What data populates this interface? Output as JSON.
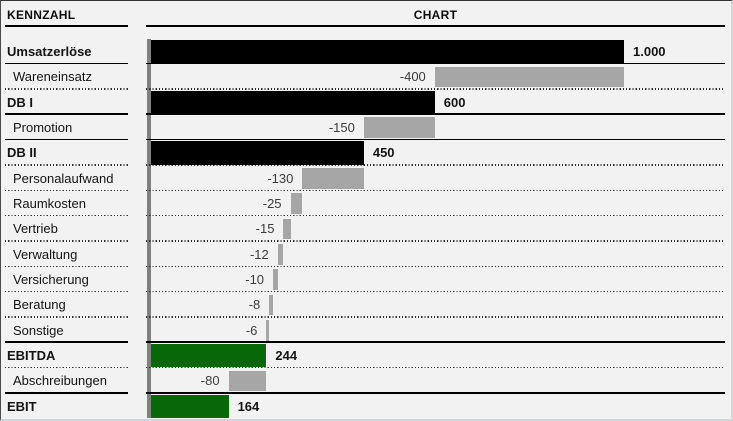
{
  "header": {
    "left_title": "KENNZAHL",
    "right_title": "CHART"
  },
  "colors": {
    "background": "#f2f2f2",
    "total_bar": "#000000",
    "delta_bar": "#a6a6a6",
    "result_bar": "#066806",
    "axis_line": "#808080",
    "separator": "#000000",
    "label_text": "#141414",
    "delta_value_text": "#3c3c3c"
  },
  "chart_data": {
    "type": "bar",
    "subtype": "horizontal-waterfall",
    "title": "CHART",
    "category_column_title": "KENNZAHL",
    "axis": {
      "min": 0,
      "max": 1000
    },
    "grid": "row-separators",
    "legend": "none",
    "rows": [
      {
        "label": "Umsatzerlöse",
        "value": 1000,
        "display": "1.000",
        "kind": "total",
        "color": "black",
        "bold": true,
        "indent": false,
        "separator": "solid"
      },
      {
        "label": "Wareneinsatz",
        "value": -400,
        "display": "-400",
        "kind": "delta",
        "color": "gray",
        "bold": false,
        "indent": true,
        "separator": "dotted"
      },
      {
        "label": "DB I",
        "value": 600,
        "display": "600",
        "kind": "total",
        "color": "black",
        "bold": true,
        "indent": false,
        "separator": "solid"
      },
      {
        "label": "Promotion",
        "value": -150,
        "display": "-150",
        "kind": "delta",
        "color": "gray",
        "bold": false,
        "indent": true,
        "separator": "solid"
      },
      {
        "label": "DB II",
        "value": 450,
        "display": "450",
        "kind": "total",
        "color": "black",
        "bold": true,
        "indent": false,
        "separator": "dotted"
      },
      {
        "label": "Personalaufwand",
        "value": -130,
        "display": "-130",
        "kind": "delta",
        "color": "gray",
        "bold": false,
        "indent": true,
        "separator": "dotted"
      },
      {
        "label": "Raumkosten",
        "value": -25,
        "display": "-25",
        "kind": "delta",
        "color": "gray",
        "bold": false,
        "indent": true,
        "separator": "dotted"
      },
      {
        "label": "Vertrieb",
        "value": -15,
        "display": "-15",
        "kind": "delta",
        "color": "gray",
        "bold": false,
        "indent": true,
        "separator": "dotted"
      },
      {
        "label": "Verwaltung",
        "value": -12,
        "display": "-12",
        "kind": "delta",
        "color": "gray",
        "bold": false,
        "indent": true,
        "separator": "dotted"
      },
      {
        "label": "Versicherung",
        "value": -10,
        "display": "-10",
        "kind": "delta",
        "color": "gray",
        "bold": false,
        "indent": true,
        "separator": "dotted"
      },
      {
        "label": "Beratung",
        "value": -8,
        "display": "-8",
        "kind": "delta",
        "color": "gray",
        "bold": false,
        "indent": true,
        "separator": "dotted"
      },
      {
        "label": "Sonstige",
        "value": -6,
        "display": "-6",
        "kind": "delta",
        "color": "gray",
        "bold": false,
        "indent": true,
        "separator": "solid"
      },
      {
        "label": "EBITDA",
        "value": 244,
        "display": "244",
        "kind": "total",
        "color": "green",
        "bold": true,
        "indent": false,
        "separator": "dotted"
      },
      {
        "label": "Abschreibungen",
        "value": -80,
        "display": "-80",
        "kind": "delta",
        "color": "gray",
        "bold": false,
        "indent": true,
        "separator": "solid"
      },
      {
        "label": "EBIT",
        "value": 164,
        "display": "164",
        "kind": "total",
        "color": "green",
        "bold": true,
        "indent": false,
        "separator": "none"
      }
    ]
  }
}
